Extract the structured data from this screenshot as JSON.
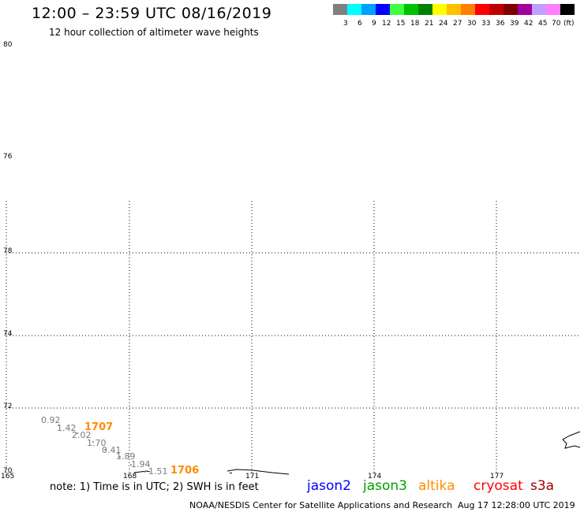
{
  "header": {
    "title": "12:00 – 23:59 UTC 08/16/2019",
    "subtitle": "12 hour collection of altimeter wave heights"
  },
  "colorbar": {
    "colors": [
      "#808080",
      "#00ffff",
      "#00a0ff",
      "#0000ff",
      "#40ff40",
      "#00c000",
      "#008000",
      "#ffff00",
      "#ffc000",
      "#ff8000",
      "#ff0000",
      "#c00000",
      "#800000",
      "#a000a0",
      "#c0a0ff",
      "#ff80ff",
      "#000000"
    ],
    "labels": [
      "3",
      "6",
      "9",
      "12",
      "15",
      "18",
      "21",
      "24",
      "27",
      "30",
      "33",
      "36",
      "39",
      "42",
      "45",
      "70",
      "(ft)"
    ]
  },
  "axes": {
    "lat_labels": [
      "80",
      "76",
      "78",
      "74",
      "72",
      "70"
    ],
    "lon_labels": [
      "165",
      "168",
      "171",
      "174",
      "177"
    ]
  },
  "observations": {
    "swh_values": [
      "0.92",
      "1.42",
      "2.02",
      "1.70",
      "0.41",
      "1.89",
      "1.94",
      "1.51"
    ],
    "time_labels": [
      "1707",
      "1706"
    ]
  },
  "footer": {
    "note": "note: 1) Time is in UTC; 2) SWH is in feet",
    "satellites": [
      {
        "name": "jason2",
        "color": "#0000ff"
      },
      {
        "name": "jason3",
        "color": "#00a000"
      },
      {
        "name": "altika",
        "color": "#ff8c00"
      },
      {
        "name": "cryosat",
        "color": "#ff0000"
      },
      {
        "name": "s3a",
        "color": "#a00000"
      }
    ],
    "credit": "NOAA/NESDIS Center for Satellite Applications and Research",
    "timestamp": "Aug 17 12:28:00 UTC 2019"
  }
}
